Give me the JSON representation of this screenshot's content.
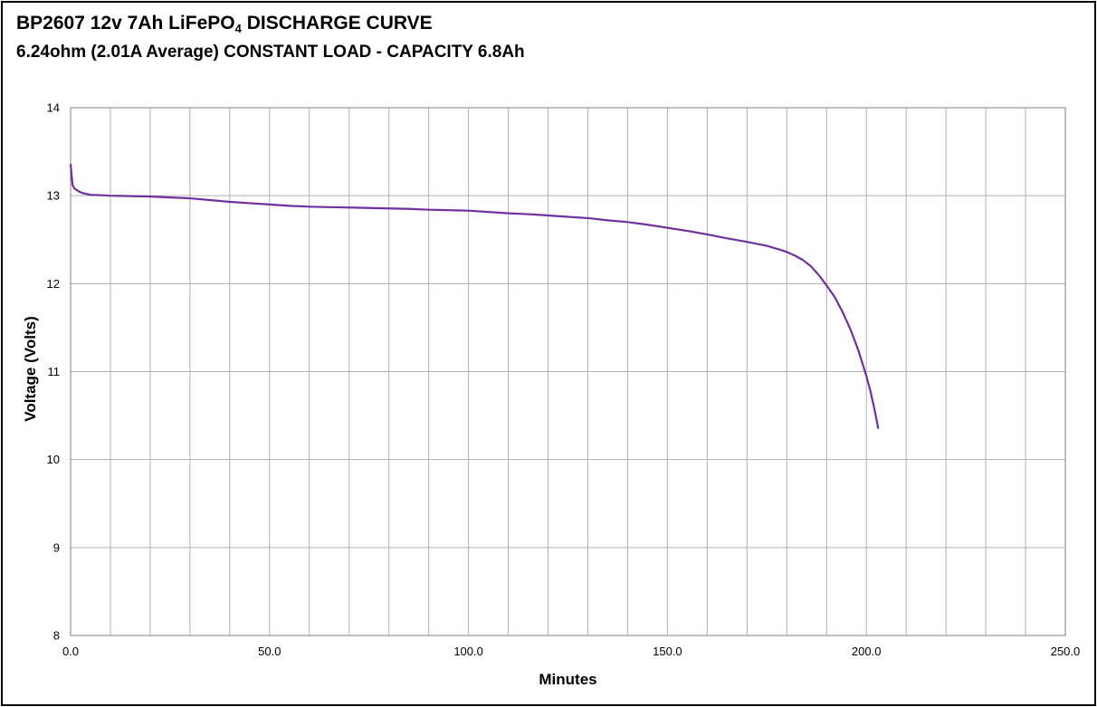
{
  "chart_data": {
    "type": "line",
    "title_main": "BP2607 12v 7Ah LiFePO",
    "title_sub_digit": "4",
    "title_rest": " DISCHARGE CURVE",
    "subtitle": "6.24ohm (2.01A Average) CONSTANT LOAD - CAPACITY 6.8Ah",
    "xlabel": "Minutes",
    "ylabel": "Voltage (Volts)",
    "xlim": [
      0,
      250
    ],
    "ylim": [
      8,
      14
    ],
    "x_ticks": [
      "0.0",
      "50.0",
      "100.0",
      "150.0",
      "200.0",
      "250.0"
    ],
    "y_ticks": [
      "8",
      "9",
      "10",
      "11",
      "12",
      "13",
      "14"
    ],
    "grid": true,
    "line_color": "#7030A0",
    "series": [
      {
        "x": [
          0,
          0.5,
          1,
          2,
          3,
          5,
          8,
          10,
          15,
          20,
          25,
          30,
          35,
          40,
          45,
          50,
          55,
          60,
          65,
          70,
          75,
          80,
          85,
          90,
          95,
          100,
          105,
          110,
          115,
          120,
          125,
          130,
          135,
          140,
          145,
          150,
          155,
          160,
          165,
          170,
          175,
          178,
          180,
          182,
          184,
          186,
          188,
          190,
          192,
          194,
          196,
          198,
          200,
          201,
          202,
          203
        ],
        "y": [
          13.36,
          13.12,
          13.08,
          13.05,
          13.03,
          13.01,
          13.005,
          13.0,
          12.995,
          12.99,
          12.98,
          12.97,
          12.95,
          12.93,
          12.915,
          12.9,
          12.885,
          12.875,
          12.87,
          12.865,
          12.86,
          12.855,
          12.85,
          12.84,
          12.835,
          12.83,
          12.815,
          12.8,
          12.79,
          12.775,
          12.76,
          12.745,
          12.72,
          12.7,
          12.67,
          12.635,
          12.6,
          12.56,
          12.515,
          12.475,
          12.43,
          12.39,
          12.36,
          12.32,
          12.27,
          12.2,
          12.1,
          11.98,
          11.85,
          11.68,
          11.48,
          11.24,
          10.95,
          10.78,
          10.58,
          10.35
        ]
      }
    ]
  }
}
